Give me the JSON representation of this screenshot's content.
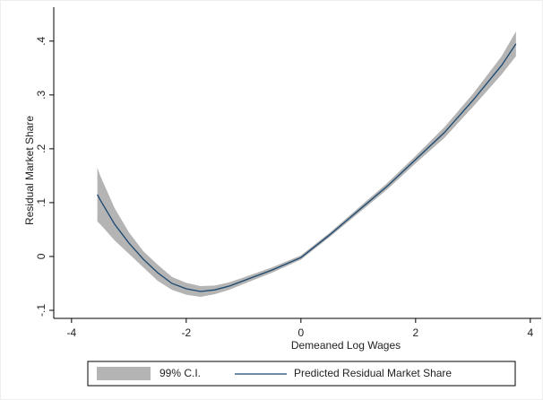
{
  "chart_data": {
    "type": "line",
    "x_label": "Demeaned Log Wages",
    "y_label": "Residual Market Share",
    "x": [
      -3.55,
      -3.5,
      -3.25,
      -3.0,
      -2.75,
      -2.5,
      -2.25,
      -2.0,
      -1.75,
      -1.5,
      -1.25,
      -1.0,
      -0.5,
      0,
      0.5,
      1.0,
      1.5,
      2.0,
      2.5,
      3.0,
      3.5,
      3.75
    ],
    "series": [
      {
        "name": "Predicted Residual Market Share",
        "color": "#1a476f",
        "values": [
          0.115,
          0.105,
          0.06,
          0.025,
          -0.005,
          -0.03,
          -0.05,
          -0.06,
          -0.065,
          -0.062,
          -0.055,
          -0.045,
          -0.025,
          -0.002,
          0.04,
          0.085,
          0.13,
          0.18,
          0.23,
          0.29,
          0.355,
          0.395
        ]
      }
    ],
    "ci": {
      "name": "99% C.I.",
      "color": "#b4b4b4",
      "lower": [
        0.065,
        0.06,
        0.03,
        0.005,
        -0.02,
        -0.045,
        -0.062,
        -0.071,
        -0.075,
        -0.07,
        -0.062,
        -0.051,
        -0.03,
        -0.006,
        0.036,
        0.08,
        0.124,
        0.173,
        0.22,
        0.278,
        0.338,
        0.372
      ],
      "upper": [
        0.165,
        0.15,
        0.09,
        0.045,
        0.01,
        -0.015,
        -0.038,
        -0.049,
        -0.055,
        -0.054,
        -0.048,
        -0.039,
        -0.02,
        0.002,
        0.044,
        0.09,
        0.136,
        0.187,
        0.24,
        0.302,
        0.372,
        0.418
      ]
    },
    "xlim": [
      -4.31,
      4.19
    ],
    "ylim": [
      -0.115,
      0.463
    ],
    "xticks": [
      -4,
      -2,
      0,
      2,
      4
    ],
    "yticks": [
      {
        "value": -0.1,
        "label": "-.1"
      },
      0,
      {
        "value": 0.1,
        "label": ".1"
      },
      {
        "value": 0.2,
        "label": ".2"
      },
      {
        "value": 0.3,
        "label": ".3"
      },
      {
        "value": 0.4,
        "label": ".4"
      }
    ],
    "grid": false,
    "legend": "bottom"
  }
}
